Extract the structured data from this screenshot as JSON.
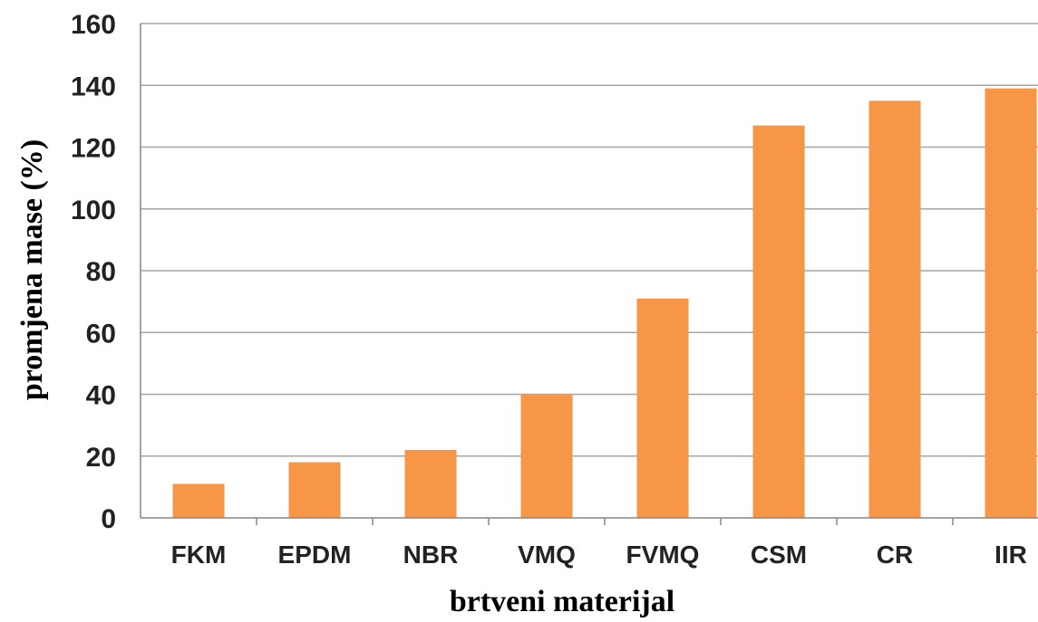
{
  "chart_data": {
    "type": "bar",
    "categories": [
      "FKM",
      "EPDM",
      "NBR",
      "VMQ",
      "FVMQ",
      "CSM",
      "CR",
      "IIR"
    ],
    "values": [
      11,
      18,
      22,
      40,
      71,
      127,
      135,
      139
    ],
    "xlabel": "brtveni materijal",
    "ylabel": "promjena mase  (%)",
    "ylim": [
      0,
      160
    ],
    "yticks": [
      0,
      20,
      40,
      60,
      80,
      100,
      120,
      140,
      160
    ],
    "grid": true,
    "legend": "none",
    "colors": {
      "bar": "#F79646",
      "grid": "#A6A6A6",
      "axis": "#868686"
    }
  }
}
